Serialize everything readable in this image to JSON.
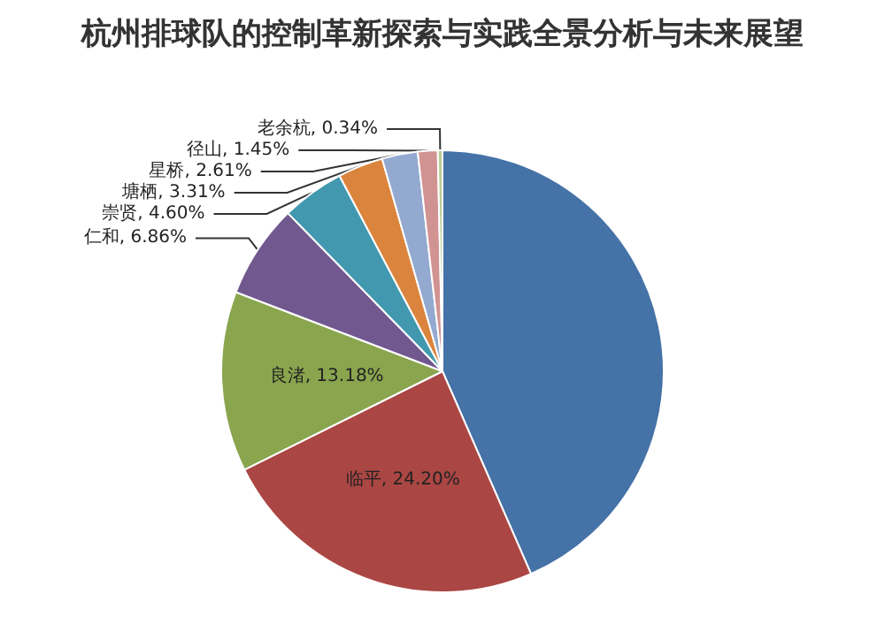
{
  "chart_data": {
    "type": "pie",
    "title": "杭州排球队的控制革新探索与实践全景分析与未来展望",
    "categories": [
      null,
      "临平",
      "良渚",
      "仁和",
      "崇贤",
      "塘栖",
      "星桥",
      "径山",
      "老余杭"
    ],
    "values": [
      43.45,
      24.2,
      13.18,
      6.86,
      4.6,
      3.31,
      2.61,
      1.45,
      0.34
    ],
    "value_labels": [
      null,
      "24.20%",
      "13.18%",
      "6.86%",
      "4.60%",
      "3.31%",
      "2.61%",
      "1.45%",
      "0.34%"
    ],
    "colors": [
      "#4572a7",
      "#aa4643",
      "#89a54e",
      "#71588f",
      "#4198af",
      "#db843d",
      "#93a9cf",
      "#d19392",
      "#b9cd96"
    ],
    "legend": false
  }
}
